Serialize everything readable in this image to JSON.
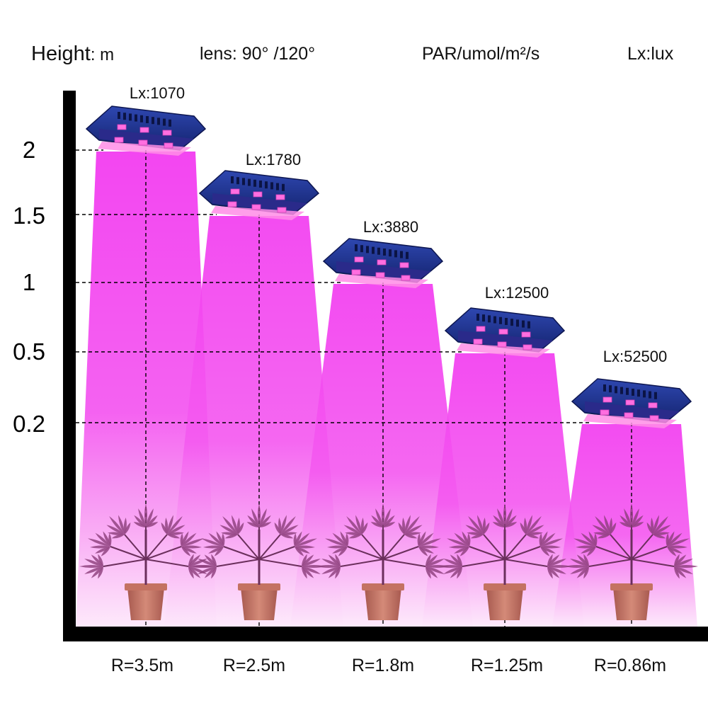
{
  "header": {
    "height_label": "Height",
    "height_unit": ": m",
    "lens_label": "lens: 90° /120°",
    "par_label": "PAR/umol/m²/s",
    "lux_label": "Lx:lux"
  },
  "y_axis": {
    "ticks": [
      "2",
      "1.5",
      "1",
      "0.5",
      "0.2"
    ]
  },
  "lamps": [
    {
      "lux": "Lx:1070",
      "height": "2",
      "radius": "R=3.5m"
    },
    {
      "lux": "Lx:1780",
      "height": "1.5",
      "radius": "R=2.5m"
    },
    {
      "lux": "Lx:3880",
      "height": "1",
      "radius": "R=1.8m"
    },
    {
      "lux": "Lx:12500",
      "height": "0.5",
      "radius": "R=1.25m"
    },
    {
      "lux": "Lx:52500",
      "height": "0.2",
      "radius": "R=0.86m"
    }
  ],
  "colors": {
    "beam": "#f23cf0",
    "beam_light": "#fbd6f8",
    "lamp_body": "#1b2f86",
    "lamp_led": "#ff6ee0",
    "axis": "#000000",
    "pot": "#c47262",
    "leaf": "#8e3f7c"
  },
  "icons": {
    "lamp": "led-grow-light-icon",
    "plant": "potted-plant-icon"
  }
}
